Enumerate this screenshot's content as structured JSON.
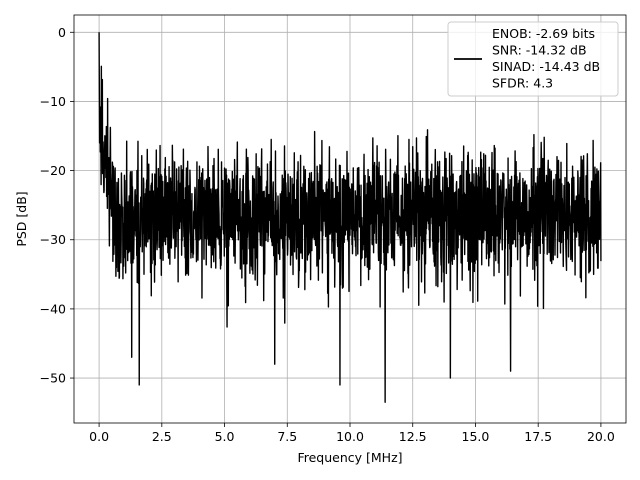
{
  "chart_data": {
    "type": "line",
    "xlabel": "Frequency [MHz]",
    "ylabel": "PSD [dB]",
    "xlim": [
      -1.0,
      21.0
    ],
    "ylim": [
      -56.5,
      2.5
    ],
    "xticks": [
      0.0,
      2.5,
      5.0,
      7.5,
      10.0,
      12.5,
      15.0,
      17.5,
      20.0
    ],
    "xtick_labels": [
      "0.0",
      "2.5",
      "5.0",
      "7.5",
      "10.0",
      "12.5",
      "15.0",
      "17.5",
      "20.0"
    ],
    "yticks": [
      0,
      -10,
      -20,
      -30,
      -40,
      -50
    ],
    "ytick_labels": [
      "0",
      "−10",
      "−20",
      "−30",
      "−40",
      "−50"
    ],
    "grid": true,
    "legend_position": "top-right",
    "line_color": "#000000",
    "series": [
      {
        "legend_lines": [
          "ENOB: -2.69 bits",
          "SNR: -14.32 dB",
          "SINAD: -14.43 dB",
          "SFDR: 4.3"
        ],
        "x_range": [
          0.0,
          20.0
        ],
        "peak": {
          "x": 0.0,
          "y": 0.0
        },
        "noise_floor_mean": -26,
        "noise_top": -14,
        "noise_bottom": -40,
        "minima": [
          {
            "x": 1.3,
            "y": -47
          },
          {
            "x": 1.6,
            "y": -51
          },
          {
            "x": 9.6,
            "y": -51
          },
          {
            "x": 11.4,
            "y": -53.5
          },
          {
            "x": 7.0,
            "y": -48
          },
          {
            "x": 16.4,
            "y": -49
          },
          {
            "x": 14.0,
            "y": -50
          }
        ]
      }
    ]
  }
}
